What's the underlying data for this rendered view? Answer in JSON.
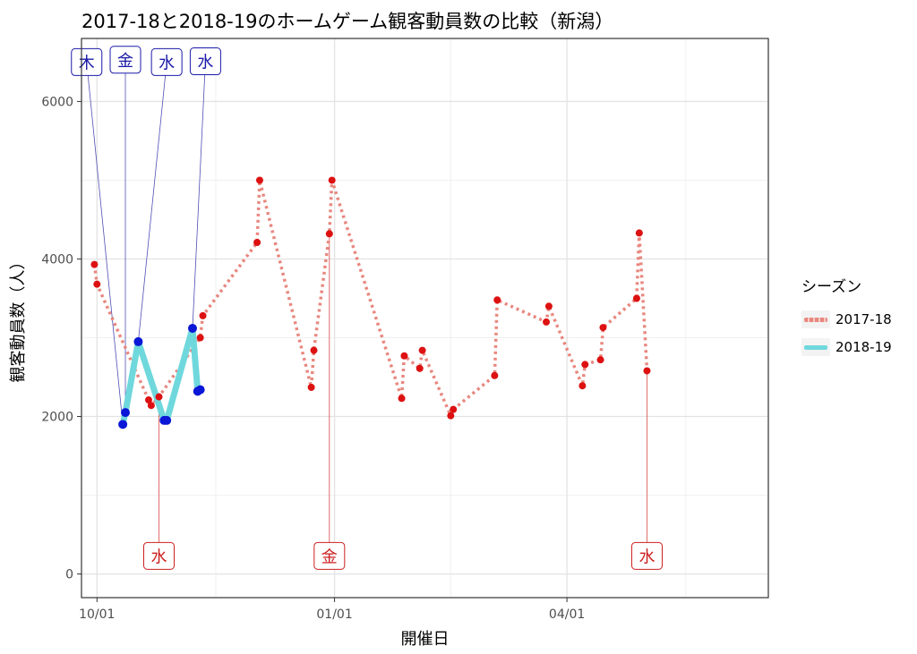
{
  "chart_data": {
    "type": "line",
    "title": "2017-18と2018-19のホームゲーム観客動員数の比較（新潟）",
    "xlabel": "開催日",
    "ylabel": "観客動員数（人）",
    "ylim": [
      -300,
      6800
    ],
    "yticks": [
      0,
      2000,
      4000,
      6000
    ],
    "xlim_days": [
      -6,
      260
    ],
    "xticks": [
      {
        "day": 0,
        "label": "10/01"
      },
      {
        "day": 92,
        "label": "01/01"
      },
      {
        "day": 182,
        "label": "04/01"
      }
    ],
    "x_minor_days": [
      46,
      137,
      228
    ],
    "grid": true,
    "legend_position": "right",
    "legend_title": "シーズン",
    "series": [
      {
        "name": "2017-18",
        "color": "#e8877e",
        "point_color": "#dd1111",
        "style": "dotted",
        "points": [
          {
            "day": -1,
            "value": 3930
          },
          {
            "day": 0,
            "value": 3680
          },
          {
            "day": 20,
            "value": 2210
          },
          {
            "day": 21,
            "value": 2140
          },
          {
            "day": 24,
            "value": 2250
          },
          {
            "day": 40,
            "value": 3000
          },
          {
            "day": 41,
            "value": 3280
          },
          {
            "day": 62,
            "value": 4210
          },
          {
            "day": 63,
            "value": 5000
          },
          {
            "day": 83,
            "value": 2370
          },
          {
            "day": 84,
            "value": 2840
          },
          {
            "day": 90,
            "value": 4320
          },
          {
            "day": 91,
            "value": 5000
          },
          {
            "day": 118,
            "value": 2230
          },
          {
            "day": 119,
            "value": 2770
          },
          {
            "day": 125,
            "value": 2610
          },
          {
            "day": 126,
            "value": 2840
          },
          {
            "day": 137,
            "value": 2010
          },
          {
            "day": 138,
            "value": 2090
          },
          {
            "day": 154,
            "value": 2520
          },
          {
            "day": 155,
            "value": 3480
          },
          {
            "day": 174,
            "value": 3200
          },
          {
            "day": 175,
            "value": 3400
          },
          {
            "day": 188,
            "value": 2390
          },
          {
            "day": 189,
            "value": 2660
          },
          {
            "day": 195,
            "value": 2720
          },
          {
            "day": 196,
            "value": 3130
          },
          {
            "day": 209,
            "value": 3500
          },
          {
            "day": 210,
            "value": 4330
          },
          {
            "day": 213,
            "value": 2580
          }
        ]
      },
      {
        "name": "2018-19",
        "color": "#6fd8dc",
        "point_color": "#0a17d6",
        "style": "solid",
        "points": [
          {
            "day": 10,
            "value": 1900
          },
          {
            "day": 11,
            "value": 2050
          },
          {
            "day": 16,
            "value": 2950
          },
          {
            "day": 26,
            "value": 1950
          },
          {
            "day": 27,
            "value": 1950
          },
          {
            "day": 37,
            "value": 3120
          },
          {
            "day": 39,
            "value": 2320
          },
          {
            "day": 40,
            "value": 2340
          }
        ]
      }
    ],
    "annotations": [
      {
        "series": "2018-19",
        "label": "木",
        "point_day": 10,
        "point_value": 1900,
        "label_day": -4,
        "label_value": 6500
      },
      {
        "series": "2018-19",
        "label": "金",
        "point_day": 11,
        "point_value": 2050,
        "label_day": 11,
        "label_value": 6530
      },
      {
        "series": "2018-19",
        "label": "水",
        "point_day": 16,
        "point_value": 2950,
        "label_day": 27,
        "label_value": 6500
      },
      {
        "series": "2018-19",
        "label": "水",
        "point_day": 37,
        "point_value": 3120,
        "label_day": 42,
        "label_value": 6510
      },
      {
        "series": "2017-18",
        "label": "水",
        "point_day": 24,
        "point_value": 2250,
        "label_day": 24,
        "label_value": 230
      },
      {
        "series": "2017-18",
        "label": "金",
        "point_day": 90,
        "point_value": 4320,
        "label_day": 90,
        "label_value": 230
      },
      {
        "series": "2017-18",
        "label": "水",
        "point_day": 213,
        "point_value": 2580,
        "label_day": 213,
        "label_value": 230
      }
    ]
  }
}
